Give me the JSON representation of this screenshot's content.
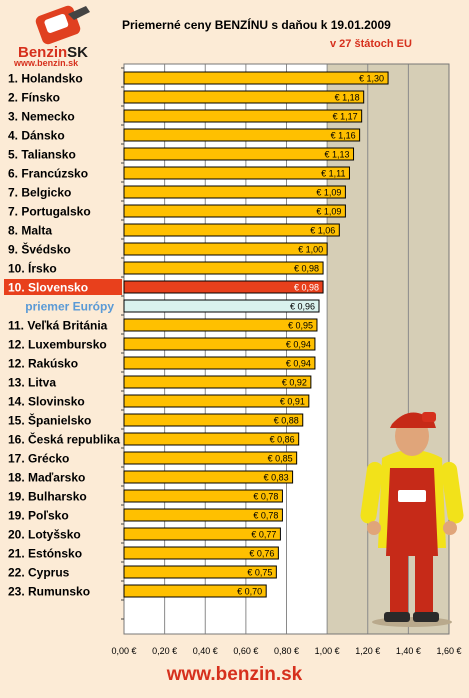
{
  "logo": {
    "brand": "Benzin",
    "brand_suffix": "SK",
    "url": "www.benzin.sk"
  },
  "footer_url": "www.benzin.sk",
  "colors": {
    "bar": "#ffc000",
    "highlight": "#e8401c",
    "average": "#d9f2ee",
    "plot_bg": "#d6ceb6",
    "accent": "#d6301d",
    "label_blue": "#5a9ad6"
  },
  "chart_data": {
    "type": "bar",
    "orientation": "horizontal",
    "title": "Priemerné ceny BENZÍNU s daňou k 19.01.2009",
    "subtitle": "v 27 štátoch EU",
    "xlim": [
      0,
      1.6
    ],
    "x_ticks": [
      "0,00 €",
      "0,20 €",
      "0,40 €",
      "0,60 €",
      "0,80 €",
      "1,00 €",
      "1,20 €",
      "1,40 €",
      "1,60 €"
    ],
    "x_tick_values": [
      0,
      0.2,
      0.4,
      0.6,
      0.8,
      1.0,
      1.2,
      1.4,
      1.6
    ],
    "grid": "vertical",
    "highlight_category": "10. Slovensko",
    "average_category": "priemer Európy",
    "categories": [
      "1. Holandsko",
      "2. Fínsko",
      "3. Nemecko",
      "4. Dánsko",
      "5. Taliansko",
      "6. Francúzsko",
      "7. Belgicko",
      "7. Portugalsko",
      "8. Malta",
      "9. Švédsko",
      "10. Írsko",
      "10. Slovensko",
      "priemer Európy",
      "11. Veľká Británia",
      "12. Luxembursko",
      "12. Rakúsko",
      "13. Litva",
      "14. Slovinsko",
      "15. Španielsko",
      "16. Česká republika",
      "17. Grécko",
      "18. Maďarsko",
      "19. Bulharsko",
      "19. Poľsko",
      "20. Lotyšsko",
      "21. Estónsko",
      "22. Cyprus",
      "23. Rumunsko"
    ],
    "values": [
      1.3,
      1.18,
      1.17,
      1.16,
      1.13,
      1.11,
      1.09,
      1.09,
      1.06,
      1.0,
      0.98,
      0.98,
      0.96,
      0.95,
      0.94,
      0.94,
      0.92,
      0.91,
      0.88,
      0.86,
      0.85,
      0.83,
      0.78,
      0.78,
      0.77,
      0.76,
      0.75,
      0.7
    ],
    "value_labels": [
      "€ 1,30",
      "€ 1,18",
      "€ 1,17",
      "€ 1,16",
      "€ 1,13",
      "€ 1,11",
      "€ 1,09",
      "€ 1,09",
      "€ 1,06",
      "€ 1,00",
      "€ 0,98",
      "€ 0,98",
      "€ 0,96",
      "€ 0,95",
      "€ 0,94",
      "€ 0,94",
      "€ 0,92",
      "€ 0,91",
      "€ 0,88",
      "€ 0,86",
      "€ 0,85",
      "€ 0,83",
      "€ 0,78",
      "€ 0,78",
      "€ 0,77",
      "€ 0,76",
      "€ 0,75",
      "€ 0,70"
    ]
  }
}
